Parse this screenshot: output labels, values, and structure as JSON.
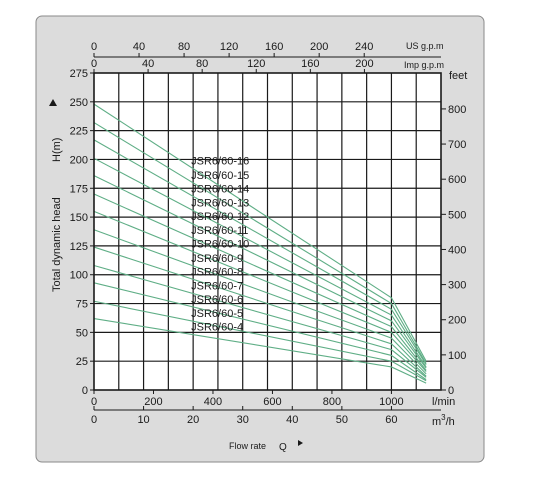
{
  "chart_data": {
    "type": "line",
    "ylabel": "Total dynamic head",
    "ylabel_symbol": "H(m)",
    "xlabel": "Flow rate",
    "xlabel_symbol": "Q",
    "right_unit": "feet",
    "top_unit_us": "US g.p.m",
    "top_unit_imp": "Imp g.p.m",
    "bottom_unit_lmin": "l/min",
    "bottom_unit_m3h": "m",
    "bottom_unit_m3h_exp": "3",
    "bottom_unit_m3h_tail": "/h",
    "x_unit": "m3/h",
    "xlim": [
      0,
      70
    ],
    "ylim": [
      0,
      275
    ],
    "grid": true,
    "x_ticks_m3h": [
      "0",
      "10",
      "20",
      "30",
      "40",
      "50",
      "60"
    ],
    "x_ticks_lmin": [
      "0",
      "200",
      "400",
      "600",
      "800",
      "1000"
    ],
    "x_ticks_usgpm": [
      "0",
      "40",
      "80",
      "120",
      "160",
      "200",
      "240"
    ],
    "x_ticks_impgpm": [
      "0",
      "40",
      "80",
      "120",
      "160",
      "200"
    ],
    "y_ticks_m": [
      "0",
      "25",
      "50",
      "75",
      "100",
      "125",
      "150",
      "175",
      "200",
      "225",
      "250",
      "275"
    ],
    "y_ticks_feet": [
      "0",
      "100",
      "200",
      "300",
      "400",
      "500",
      "600",
      "700",
      "800"
    ],
    "series": [
      {
        "name": "JSR6/60-16",
        "x": [
          0,
          60,
          67
        ],
        "y": [
          248,
          80,
          25
        ]
      },
      {
        "name": "JSR6/60-15",
        "x": [
          0,
          60,
          67
        ],
        "y": [
          232,
          75,
          23
        ]
      },
      {
        "name": "JSR6/60-14",
        "x": [
          0,
          60,
          67
        ],
        "y": [
          217,
          70,
          22
        ]
      },
      {
        "name": "JSR6/60-13",
        "x": [
          0,
          60,
          67
        ],
        "y": [
          201,
          65,
          20
        ]
      },
      {
        "name": "JSR6/60-12",
        "x": [
          0,
          60,
          67
        ],
        "y": [
          186,
          60,
          19
        ]
      },
      {
        "name": "JSR6/60-11",
        "x": [
          0,
          60,
          67
        ],
        "y": [
          170,
          55,
          17
        ]
      },
      {
        "name": "JSR6/60-10",
        "x": [
          0,
          60,
          67
        ],
        "y": [
          155,
          50,
          16
        ]
      },
      {
        "name": "JSR6/60-9",
        "x": [
          0,
          60,
          67
        ],
        "y": [
          139,
          45,
          14
        ]
      },
      {
        "name": "JSR6/60-8",
        "x": [
          0,
          60,
          67
        ],
        "y": [
          124,
          40,
          12
        ]
      },
      {
        "name": "JSR6/60-7",
        "x": [
          0,
          60,
          67
        ],
        "y": [
          108,
          35,
          11
        ]
      },
      {
        "name": "JSR6/60-6",
        "x": [
          0,
          60,
          67
        ],
        "y": [
          93,
          30,
          9
        ]
      },
      {
        "name": "JSR6/60-5",
        "x": [
          0,
          60,
          67
        ],
        "y": [
          77,
          25,
          8
        ]
      },
      {
        "name": "JSR6/60-4",
        "x": [
          0,
          60,
          67
        ],
        "y": [
          62,
          20,
          6
        ]
      }
    ],
    "colors": {
      "curve": "#5fae86",
      "grid": "#1a1a1a",
      "panel": "#dcdcdc",
      "plot_bg": "#ffffff"
    }
  }
}
